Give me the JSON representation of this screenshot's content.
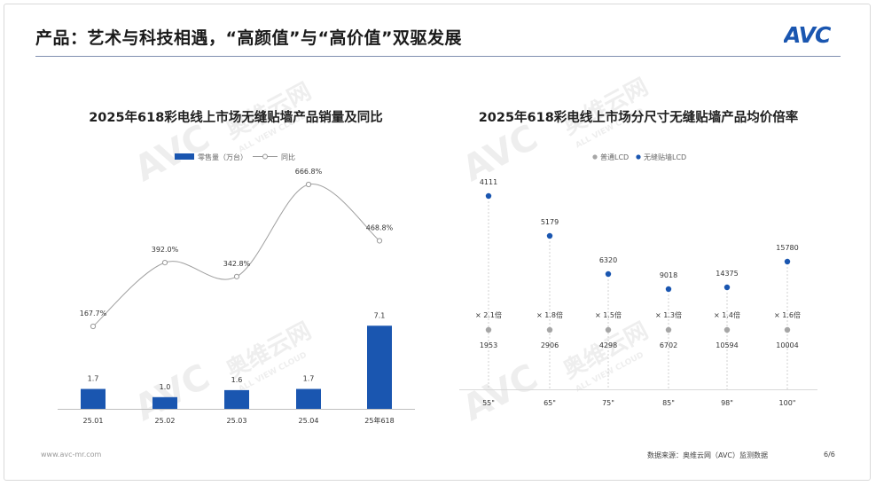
{
  "header": {
    "title": "产品：艺术与科技相遇，“高颜值”与“高价值”双驱发展",
    "logo_text": "AVC",
    "brand_color": "#1a56b0"
  },
  "watermark": {
    "text": "奥维云网",
    "sub": "ALL VIEW CLOUD",
    "logo": "AVC"
  },
  "chart_data": [
    {
      "type": "bar",
      "title": "2025年618彩电线上市场无缝贴墙产品销量及同比",
      "categories": [
        "25.01",
        "25.02",
        "25.03",
        "25.04",
        "25年618"
      ],
      "series": [
        {
          "name": "零售量（万台）",
          "type": "bar",
          "values": [
            1.7,
            1.0,
            1.6,
            1.7,
            7.1
          ],
          "labels": [
            "1.7",
            "1.0",
            "1.6",
            "1.7",
            "7.1"
          ],
          "color": "#1a56b0"
        },
        {
          "name": "同比",
          "type": "line",
          "values": [
            167.7,
            392.0,
            342.8,
            666.8,
            468.8
          ],
          "labels": [
            "167.7%",
            "392.0%",
            "342.8%",
            "666.8%",
            "468.8%"
          ],
          "color": "#999999"
        }
      ],
      "legend": "top"
    },
    {
      "type": "scatter",
      "title": "2025年618彩电线上市场分尺寸无缝贴墙产品均价倍率",
      "categories": [
        "55\"",
        "65\"",
        "75\"",
        "85\"",
        "98\"",
        "100\""
      ],
      "series": [
        {
          "name": "普通LCD",
          "values": [
            1953,
            2906,
            4298,
            6702,
            10594,
            10004
          ],
          "labels": [
            "1953",
            "2906",
            "4298",
            "6702",
            "10594",
            "10004"
          ],
          "color": "#a6a6a6"
        },
        {
          "name": "无缝贴墙LCD",
          "values": [
            4111,
            5179,
            6320,
            9018,
            14375,
            15780
          ],
          "labels": [
            "4111",
            "5179",
            "6320",
            "9018",
            "14375",
            "15780"
          ],
          "color": "#1a56b0"
        }
      ],
      "ratio_labels": [
        "× 2.1倍",
        "× 1.8倍",
        "× 1.5倍",
        "× 1.3倍",
        "× 1.4倍",
        "× 1.6倍"
      ],
      "legend": "top"
    }
  ],
  "footer": {
    "website": "www.avc-mr.com",
    "source": "数据来源：奥维云网（AVC）监测数据",
    "page": "6/6"
  }
}
